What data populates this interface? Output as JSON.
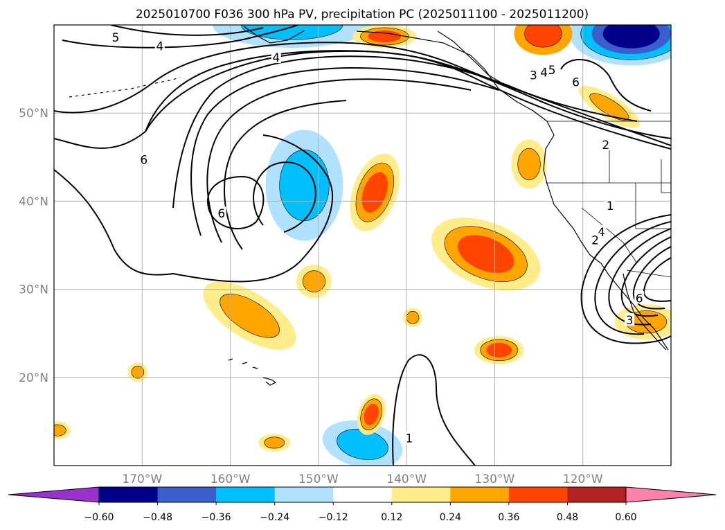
{
  "chart_data": {
    "type": "heatmap",
    "title": "2025010700 F036 300 hPa PV, precipitation PC (2025011100 - 2025011200)",
    "map": {
      "lon_range": [
        -180,
        -110
      ],
      "lat_range": [
        10,
        60
      ],
      "lon_ticks": [
        {
          "value": -170,
          "label": "170°W"
        },
        {
          "value": -160,
          "label": "160°W"
        },
        {
          "value": -150,
          "label": "150°W"
        },
        {
          "value": -140,
          "label": "140°W"
        },
        {
          "value": -130,
          "label": "130°W"
        },
        {
          "value": -120,
          "label": "120°W"
        }
      ],
      "lat_ticks": [
        {
          "value": 20,
          "label": "20°N"
        },
        {
          "value": 30,
          "label": "30°N"
        },
        {
          "value": 40,
          "label": "40°N"
        },
        {
          "value": 50,
          "label": "50°N"
        }
      ],
      "grid": true
    },
    "colorbar": {
      "levels": [
        -0.6,
        -0.48,
        -0.36,
        -0.24,
        -0.12,
        0.12,
        0.24,
        0.36,
        0.48,
        0.6
      ],
      "tick_labels": [
        "−0.60",
        "−0.48",
        "−0.36",
        "−0.24",
        "−0.12",
        "0.12",
        "0.24",
        "0.36",
        "0.48",
        "0.60"
      ],
      "colors": [
        "#9932CC",
        "#00008B",
        "#3A5FCD",
        "#00BFFF",
        "#B0E2FF",
        "#FFFFFF",
        "#FFEC8B",
        "#FFA500",
        "#FF4500",
        "#B22222",
        "#FF82AB"
      ],
      "extend": "both"
    },
    "pv_contour_labels": [
      {
        "text": "5",
        "lon": -173.0,
        "lat": 58.6
      },
      {
        "text": "4",
        "lon": -168.0,
        "lat": 57.6
      },
      {
        "text": "4",
        "lon": -154.8,
        "lat": 56.3
      },
      {
        "text": "6",
        "lon": -169.8,
        "lat": 44.7
      },
      {
        "text": "6",
        "lon": -161.0,
        "lat": 38.6
      },
      {
        "text": "3",
        "lon": -125.6,
        "lat": 54.3
      },
      {
        "text": "4",
        "lon": -124.4,
        "lat": 54.6
      },
      {
        "text": "5",
        "lon": -123.5,
        "lat": 54.9
      },
      {
        "text": "6",
        "lon": -120.8,
        "lat": 53.5
      },
      {
        "text": "2",
        "lon": -117.4,
        "lat": 46.4
      },
      {
        "text": "1",
        "lon": -116.9,
        "lat": 39.5
      },
      {
        "text": "4",
        "lon": -117.9,
        "lat": 36.5
      },
      {
        "text": "2",
        "lon": -118.6,
        "lat": 35.6
      },
      {
        "text": "6",
        "lon": -113.6,
        "lat": 29.0
      },
      {
        "text": "3",
        "lon": -114.7,
        "lat": 26.5
      },
      {
        "text": "1",
        "lon": -139.7,
        "lat": 13.1
      }
    ],
    "precip_regions": [
      {
        "lon": -151.6,
        "lat": 41.8,
        "rx": 4.4,
        "ry": 6.3,
        "rot": 0,
        "levels": [
          -0.12,
          -0.24
        ]
      },
      {
        "lon": -153.0,
        "lat": 60.0,
        "rx": 9.0,
        "ry": 2.6,
        "rot": 0,
        "levels": [
          -0.12,
          -0.24
        ]
      },
      {
        "lon": -145.0,
        "lat": 12.4,
        "rx": 4.6,
        "ry": 2.6,
        "rot": 12,
        "levels": [
          -0.12,
          -0.24
        ]
      },
      {
        "lon": -114.5,
        "lat": 59.0,
        "rx": 7.0,
        "ry": 3.6,
        "rot": 0,
        "levels": [
          -0.12,
          -0.24,
          -0.36,
          -0.48
        ]
      },
      {
        "lon": -143.6,
        "lat": 41.0,
        "rx": 2.5,
        "ry": 4.6,
        "rot": 20,
        "levels": [
          0.12,
          0.24,
          0.36
        ]
      },
      {
        "lon": -131.0,
        "lat": 34.0,
        "rx": 6.5,
        "ry": 3.6,
        "rot": 22,
        "levels": [
          0.12,
          0.24,
          0.36
        ]
      },
      {
        "lon": -157.8,
        "lat": 27.0,
        "rx": 6.0,
        "ry": 2.6,
        "rot": 32,
        "levels": [
          0.12,
          0.24
        ]
      },
      {
        "lon": -150.5,
        "lat": 30.9,
        "rx": 2.0,
        "ry": 1.9,
        "rot": 0,
        "levels": [
          0.12,
          0.24
        ]
      },
      {
        "lon": -129.5,
        "lat": 23.1,
        "rx": 2.8,
        "ry": 1.6,
        "rot": 0,
        "levels": [
          0.12,
          0.24,
          0.36
        ]
      },
      {
        "lon": -139.3,
        "lat": 26.8,
        "rx": 1.1,
        "ry": 1.1,
        "rot": 0,
        "levels": [
          0.12,
          0.24
        ]
      },
      {
        "lon": -170.5,
        "lat": 20.6,
        "rx": 1.1,
        "ry": 1.1,
        "rot": 0,
        "levels": [
          0.12,
          0.24
        ]
      },
      {
        "lon": -144.0,
        "lat": 15.8,
        "rx": 1.5,
        "ry": 2.4,
        "rot": 18,
        "levels": [
          0.12,
          0.24,
          0.36
        ]
      },
      {
        "lon": -155.0,
        "lat": 12.6,
        "rx": 1.8,
        "ry": 1.0,
        "rot": 0,
        "levels": [
          0.12,
          0.24
        ]
      },
      {
        "lon": -179.6,
        "lat": 14.0,
        "rx": 1.5,
        "ry": 1.0,
        "rot": 0,
        "levels": [
          0.12,
          0.24
        ]
      },
      {
        "lon": -126.1,
        "lat": 44.2,
        "rx": 2.0,
        "ry": 2.8,
        "rot": 0,
        "levels": [
          0.12,
          0.24
        ]
      },
      {
        "lon": -142.5,
        "lat": 58.7,
        "rx": 3.6,
        "ry": 1.3,
        "rot": 0,
        "levels": [
          0.12,
          0.24,
          0.36
        ]
      },
      {
        "lon": -124.5,
        "lat": 59.0,
        "rx": 3.3,
        "ry": 2.4,
        "rot": 0,
        "levels": [
          0.24,
          0.36
        ]
      },
      {
        "lon": -117.0,
        "lat": 50.7,
        "rx": 4.0,
        "ry": 1.3,
        "rot": 32,
        "levels": [
          0.12,
          0.24
        ]
      },
      {
        "lon": -112.8,
        "lat": 26.3,
        "rx": 3.6,
        "ry": 2.0,
        "rot": 0,
        "levels": [
          0.12,
          0.24
        ]
      }
    ]
  }
}
